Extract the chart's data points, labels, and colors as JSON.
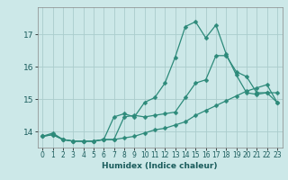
{
  "xlabel": "Humidex (Indice chaleur)",
  "bg_color": "#cce8e8",
  "grid_color": "#aacccc",
  "line_color": "#2d8a7a",
  "xlim": [
    -0.5,
    23.5
  ],
  "ylim": [
    13.5,
    17.85
  ],
  "yticks": [
    14,
    15,
    16,
    17
  ],
  "xticks": [
    0,
    1,
    2,
    3,
    4,
    5,
    6,
    7,
    8,
    9,
    10,
    11,
    12,
    13,
    14,
    15,
    16,
    17,
    18,
    19,
    20,
    21,
    22,
    23
  ],
  "line1_x": [
    0,
    1,
    2,
    3,
    4,
    5,
    6,
    7,
    8,
    9,
    10,
    11,
    12,
    13,
    14,
    15,
    16,
    17,
    18,
    19,
    20,
    21,
    22,
    23
  ],
  "line1_y": [
    13.85,
    13.95,
    13.75,
    13.7,
    13.7,
    13.7,
    13.75,
    14.45,
    14.55,
    14.45,
    14.9,
    15.05,
    15.5,
    16.3,
    17.25,
    17.4,
    16.9,
    17.3,
    16.4,
    15.75,
    15.2,
    15.15,
    15.2,
    15.2
  ],
  "line2_x": [
    0,
    1,
    2,
    3,
    4,
    5,
    6,
    7,
    8,
    9,
    10,
    11,
    12,
    13,
    14,
    15,
    16,
    17,
    18,
    19,
    20,
    21,
    22,
    23
  ],
  "line2_y": [
    13.85,
    13.9,
    13.75,
    13.7,
    13.7,
    13.7,
    13.75,
    13.75,
    14.45,
    14.5,
    14.45,
    14.5,
    14.55,
    14.6,
    15.05,
    15.5,
    15.6,
    16.35,
    16.35,
    15.85,
    15.7,
    15.2,
    15.2,
    14.9
  ],
  "line3_x": [
    0,
    1,
    2,
    3,
    4,
    5,
    6,
    7,
    8,
    9,
    10,
    11,
    12,
    13,
    14,
    15,
    16,
    17,
    18,
    19,
    20,
    21,
    22,
    23
  ],
  "line3_y": [
    13.85,
    13.9,
    13.75,
    13.7,
    13.7,
    13.7,
    13.75,
    13.75,
    13.8,
    13.85,
    13.95,
    14.05,
    14.1,
    14.2,
    14.3,
    14.5,
    14.65,
    14.8,
    14.95,
    15.1,
    15.25,
    15.35,
    15.45,
    14.9
  ]
}
